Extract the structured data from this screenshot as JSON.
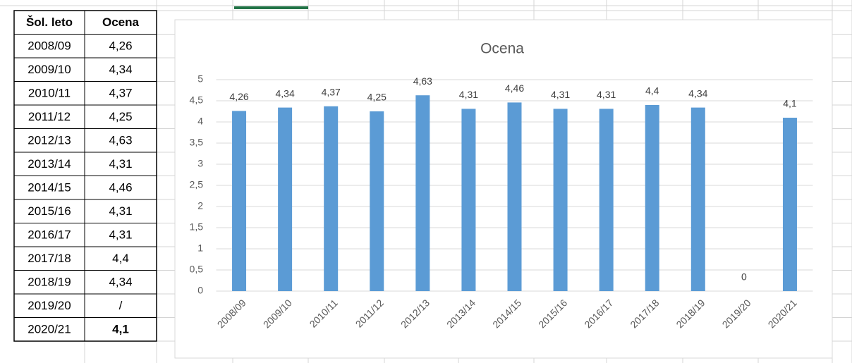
{
  "table": {
    "header": [
      "Šol. leto",
      "Ocena"
    ],
    "rows": [
      [
        "2008/09",
        "4,26"
      ],
      [
        "2009/10",
        "4,34"
      ],
      [
        "2010/11",
        "4,37"
      ],
      [
        "2011/12",
        "4,25"
      ],
      [
        "2012/13",
        "4,63"
      ],
      [
        "2013/14",
        "4,31"
      ],
      [
        "2014/15",
        "4,46"
      ],
      [
        "2015/16",
        "4,31"
      ],
      [
        "2016/17",
        "4,31"
      ],
      [
        "2017/18",
        "4,4"
      ],
      [
        "2018/19",
        "4,34"
      ],
      [
        "2019/20",
        "/"
      ],
      [
        "2020/21",
        "4,1"
      ]
    ]
  },
  "chart_data": {
    "type": "bar",
    "title": "Ocena",
    "categories": [
      "2008/09",
      "2009/10",
      "2010/11",
      "2011/12",
      "2012/13",
      "2013/14",
      "2014/15",
      "2015/16",
      "2016/17",
      "2017/18",
      "2018/19",
      "2019/20",
      "2020/21"
    ],
    "values": [
      4.26,
      4.34,
      4.37,
      4.25,
      4.63,
      4.31,
      4.46,
      4.31,
      4.31,
      4.4,
      4.34,
      0,
      4.1
    ],
    "value_labels": [
      "4,26",
      "4,34",
      "4,37",
      "4,25",
      "4,63",
      "4,31",
      "4,46",
      "4,31",
      "4,31",
      "4,4",
      "4,34",
      "0",
      "4,1"
    ],
    "color": "#5b9bd5",
    "ylim": [
      0,
      5
    ],
    "yticks": [
      0,
      {
        "value": 0.5,
        "label": "0,5"
      },
      1,
      {
        "value": 1.5,
        "label": "1,5"
      },
      2,
      {
        "value": 2.5,
        "label": "2,5"
      },
      3,
      {
        "value": 3.5,
        "label": "3,5"
      },
      4,
      {
        "value": 4.5,
        "label": "4,5"
      },
      5
    ],
    "grid": true
  }
}
